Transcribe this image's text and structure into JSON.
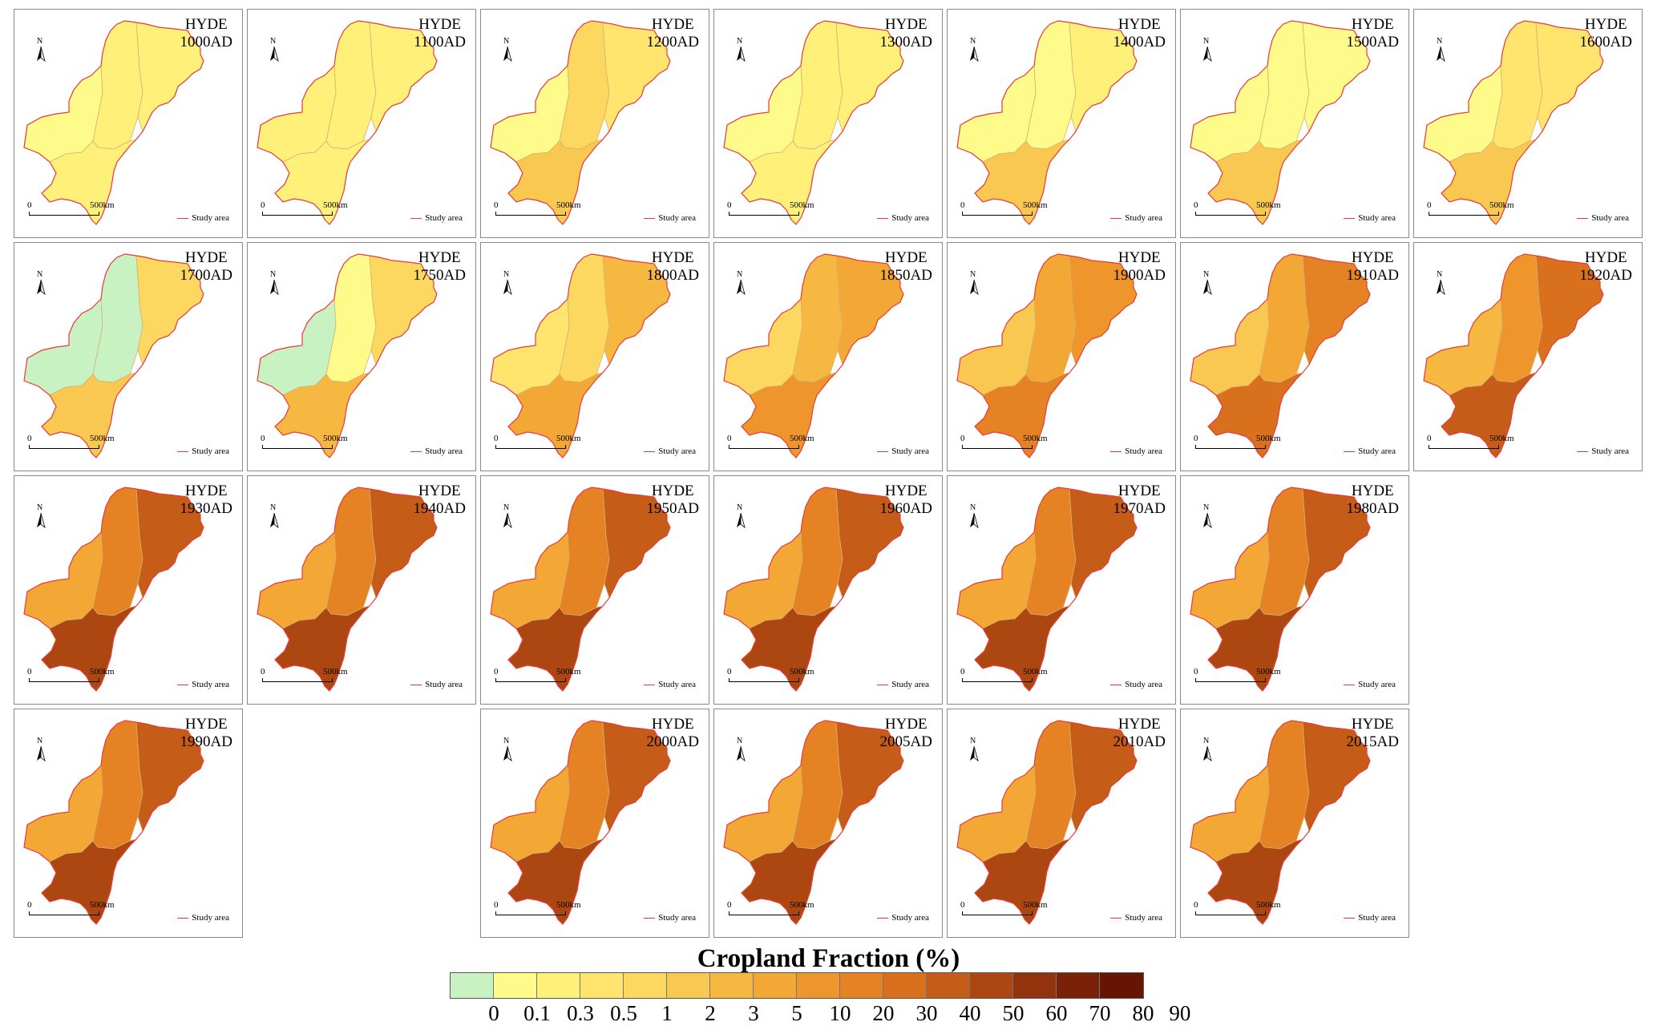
{
  "panels": [
    {
      "l1": "HYDE",
      "l2": "1000AD",
      "lvl": [
        0,
        1,
        1,
        1
      ]
    },
    {
      "l1": "HYDE",
      "l2": "1100AD",
      "lvl": [
        1,
        1,
        1,
        1
      ]
    },
    {
      "l1": "HYDE",
      "l2": "1200AD",
      "lvl": [
        0,
        3,
        2,
        4
      ]
    },
    {
      "l1": "HYDE",
      "l2": "1300AD",
      "lvl": [
        0,
        1,
        1,
        1
      ]
    },
    {
      "l1": "HYDE",
      "l2": "1400AD",
      "lvl": [
        0,
        0,
        1,
        4
      ]
    },
    {
      "l1": "HYDE",
      "l2": "1500AD",
      "lvl": [
        0,
        0,
        0,
        4
      ]
    },
    {
      "l1": "HYDE",
      "l2": "1600AD",
      "lvl": [
        0,
        2,
        2,
        4
      ]
    },
    {
      "l1": "HYDE",
      "l2": "1700AD",
      "lvl": [
        -1,
        -1,
        3,
        4
      ]
    },
    {
      "l1": "HYDE",
      "l2": "1750AD",
      "lvl": [
        -1,
        0,
        3,
        5
      ]
    },
    {
      "l1": "HYDE",
      "l2": "1800AD",
      "lvl": [
        2,
        3,
        5,
        6
      ]
    },
    {
      "l1": "HYDE",
      "l2": "1850AD",
      "lvl": [
        3,
        5,
        6,
        7
      ]
    },
    {
      "l1": "HYDE",
      "l2": "1900AD",
      "lvl": [
        4,
        6,
        7,
        8
      ]
    },
    {
      "l1": "HYDE",
      "l2": "1910AD",
      "lvl": [
        4,
        6,
        8,
        9
      ]
    },
    {
      "l1": "HYDE",
      "l2": "1920AD",
      "lvl": [
        5,
        7,
        9,
        10
      ]
    },
    {
      "l1": "HYDE",
      "l2": "1930AD",
      "lvl": [
        6,
        8,
        10,
        11
      ]
    },
    {
      "l1": "HYDE",
      "l2": "1940AD",
      "lvl": [
        6,
        8,
        10,
        11
      ]
    },
    {
      "l1": "HYDE",
      "l2": "1950AD",
      "lvl": [
        6,
        8,
        10,
        11
      ]
    },
    {
      "l1": "HYDE",
      "l2": "1960AD",
      "lvl": [
        6,
        8,
        10,
        11
      ]
    },
    {
      "l1": "HYDE",
      "l2": "1970AD",
      "lvl": [
        6,
        8,
        10,
        11
      ]
    },
    {
      "l1": "HYDE",
      "l2": "1980AD",
      "lvl": [
        6,
        8,
        10,
        11
      ]
    },
    {
      "l1": "HYDE",
      "l2": "1990AD",
      "lvl": [
        6,
        8,
        10,
        11
      ]
    },
    {
      "l1": "HYDE",
      "l2": "2000AD",
      "lvl": [
        6,
        8,
        10,
        11
      ]
    },
    {
      "l1": "HYDE",
      "l2": "2005AD",
      "lvl": [
        6,
        8,
        10,
        11
      ]
    },
    {
      "l1": "HYDE",
      "l2": "2010AD",
      "lvl": [
        6,
        8,
        10,
        11
      ]
    },
    {
      "l1": "HYDE",
      "l2": "2015AD",
      "lvl": [
        6,
        8,
        10,
        11
      ]
    }
  ],
  "scale": {
    "zero": "0",
    "length": "500km"
  },
  "north_label": "N",
  "study_area_label": "Study area",
  "colorbar": {
    "title": "Cropland Fraction (%)",
    "colors": [
      "#c9f2c2",
      "#fffb8a",
      "#fff07a",
      "#ffe56e",
      "#fcd860",
      "#f9c850",
      "#f6b840",
      "#f3a735",
      "#ee952c",
      "#e58324",
      "#d8701e",
      "#c55c17",
      "#ad4712",
      "#93330d",
      "#7a2208",
      "#661505"
    ],
    "ticks": [
      "0",
      "0.1",
      "0.3",
      "0.5",
      "1",
      "2",
      "3",
      "5",
      "10",
      "20",
      "30",
      "40",
      "50",
      "60",
      "70",
      "80",
      "90"
    ]
  },
  "colors": {
    "boundary": "#e83a3a",
    "frame": "#8a8a8a"
  }
}
